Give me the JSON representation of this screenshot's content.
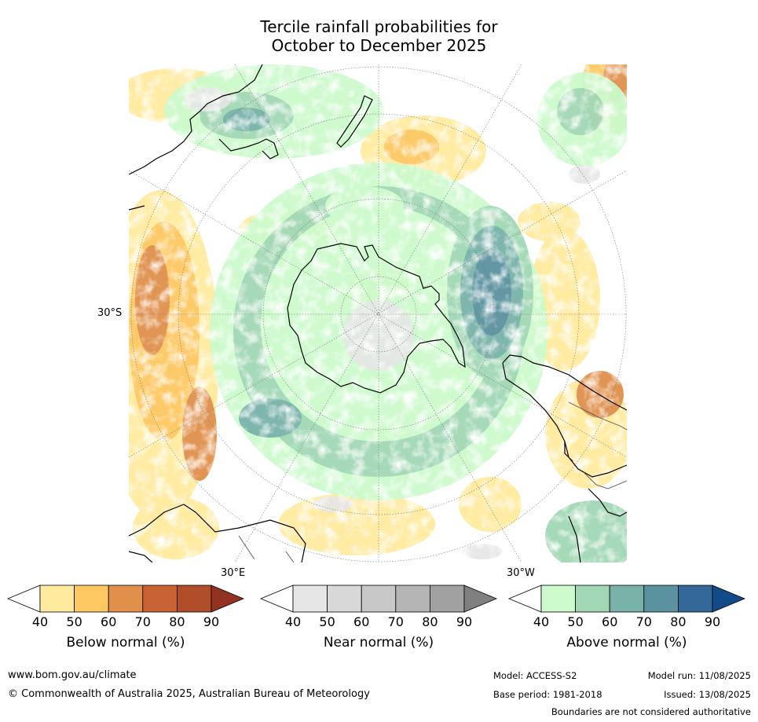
{
  "title": {
    "line1": "Tercile rainfall probabilities for",
    "line2": "October to December 2025"
  },
  "map": {
    "lat_label": "30°S",
    "lon_label_east": "30°E",
    "lon_label_west": "30°W"
  },
  "colorbars": [
    {
      "id": "below",
      "label": "Below normal (%)",
      "ticks": [
        "40",
        "50",
        "60",
        "70",
        "80",
        "90"
      ],
      "colors": [
        "#ffffff",
        "#ffea9e",
        "#fdc862",
        "#e0904b",
        "#c96333",
        "#b04e2a",
        "#943222"
      ]
    },
    {
      "id": "near",
      "label": "Near normal (%)",
      "ticks": [
        "40",
        "50",
        "60",
        "70",
        "80",
        "90"
      ],
      "colors": [
        "#ffffff",
        "#e6e6e6",
        "#d8d8d8",
        "#c8c8c8",
        "#b5b5b5",
        "#a1a1a1",
        "#808080"
      ]
    },
    {
      "id": "above",
      "label": "Above normal (%)",
      "ticks": [
        "40",
        "50",
        "60",
        "70",
        "80",
        "90"
      ],
      "colors": [
        "#ffffff",
        "#ccfacc",
        "#a1d7b5",
        "#78b2a8",
        "#5a929f",
        "#336898",
        "#124b88"
      ]
    }
  ],
  "footer": {
    "url": "www.bom.gov.au/climate",
    "copyright": "© Commonwealth of Australia 2025, Australian Bureau of Meteorology",
    "model": "Model: ACCESS-S2",
    "base_period": "Base period: 1981-2018",
    "model_run": "Model run: 11/08/2025",
    "issued": "Issued: 13/08/2025",
    "disclaimer": "Boundaries are not considered authoritative"
  }
}
